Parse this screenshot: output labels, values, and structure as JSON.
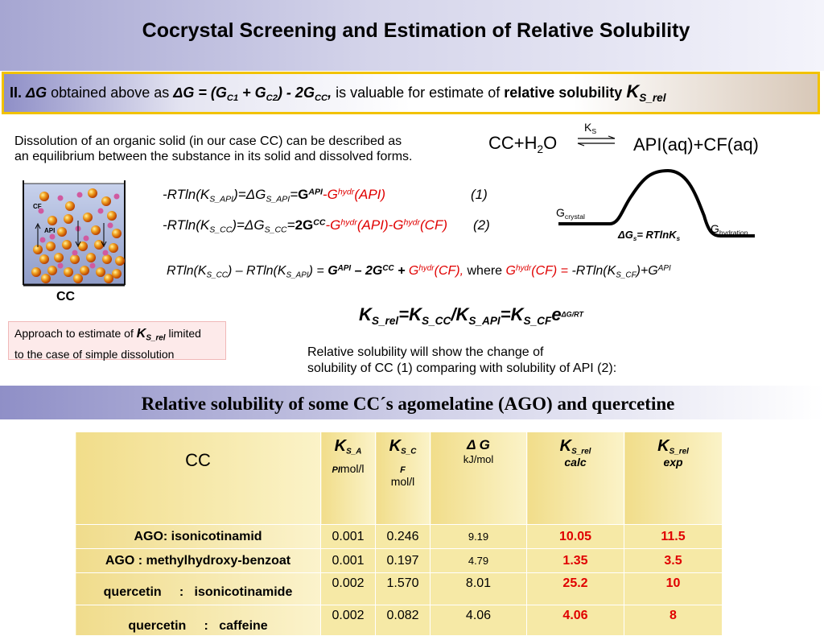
{
  "title": "Cocrystal Screening  and Estimation of Relative Solubility",
  "section": {
    "roman": "II.",
    "dg_sym": "ΔG",
    "text1": "obtained above as",
    "eq": "ΔG =  (G",
    "c1": "C1",
    "plus": " + G",
    "c2": "C2",
    "mid": ")  - 2G",
    "cc": "CC",
    "comma": ",",
    "text2": "is valuable for estimate of",
    "bold2": "relative solubility",
    "k": "K",
    "k_sub": "S_rel"
  },
  "dissolution_text_1": "Dissolution of an organic solid (in our case CC) can be described as",
  "dissolution_text_2": "an equilibrium between the substance in its solid and dissolved forms.",
  "reaction": {
    "left": "CC+H",
    "left_sub": "2",
    "left_end": "O",
    "k": "K",
    "k_sub": "S",
    "right": "API(aq)+CF(aq)"
  },
  "beaker": {
    "label": "CC",
    "cf": "CF",
    "api": "API"
  },
  "eq1": {
    "num": "(1)"
  },
  "eq2": {
    "num": "(2)"
  },
  "energy": {
    "g_crystal": "G",
    "g_crystal_sub": "crystal",
    "g_hydration": "G",
    "g_hydration_sub": "hydration",
    "dg": "ΔG",
    "dg_sub": "s",
    "dg_eq": "= RTlnK",
    "dg_k_sub": "s"
  },
  "approach": {
    "text1": "Approach to estimate of",
    "k": "K",
    "k_sub": "S_rel",
    "text2": "limited",
    "text3": "to the case of simple dissolution"
  },
  "relative_text_1": "Relative solubility will show the change of",
  "relative_text_2": "solubility of CC (1) comparing with solubility of API (2):",
  "subtitle": "Relative solubility of some CC´s  agomelatine (AGO) and quercetine",
  "chart_data": {
    "type": "table",
    "columns": [
      "CC",
      "K_S_API mol/l",
      "K_S_CF mol/l",
      "Δ G kJ/mol",
      "K_S_rel calc",
      "K_S_rel exp"
    ],
    "rows": [
      {
        "cc": "AGO: isonicotinamid",
        "ks_api": "0.001",
        "ks_cf": "0.246",
        "dg": "9.19",
        "calc": "10.05",
        "exp": "11.5"
      },
      {
        "cc": "AGO : methylhydroxy-benzoat",
        "ks_api": "0.001",
        "ks_cf": "0.197",
        "dg": "4.79",
        "calc": "1.35",
        "exp": "3.5"
      },
      {
        "cc": "quercetin     :   isonicotinamide",
        "ks_api": "0.002",
        "ks_cf": "1.570",
        "dg": "8.01",
        "calc": "25.2",
        "exp": "10"
      },
      {
        "cc": "quercetin     :   caffeine",
        "ks_api": "0.002",
        "ks_cf": "0.082",
        "dg": "4.06",
        "calc": "4.06",
        "exp": "8"
      }
    ]
  },
  "table_header": {
    "cc": "CC",
    "k": "K",
    "api_sub": "S_A",
    "api_sub2": "PI",
    "cf_sub": "S_C",
    "cf_sub2": "F",
    "unit": "mol/l",
    "dg": "Δ G",
    "dg_unit": "kJ/mol",
    "rel_sub": "S_rel",
    "calc": "calc",
    "exp": "exp"
  }
}
